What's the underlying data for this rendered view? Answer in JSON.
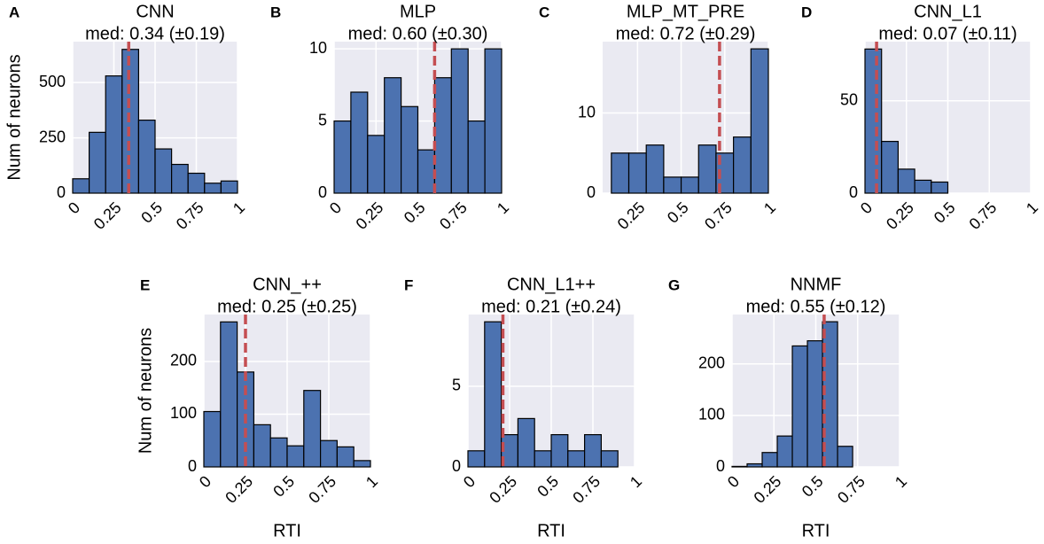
{
  "chart_data": [
    {
      "type": "histogram",
      "panel": "A",
      "title": "CNN",
      "subtitle": "med: 0.34 (±0.19)",
      "median": 0.34,
      "bins": [
        0,
        0.1,
        0.2,
        0.3,
        0.4,
        0.5,
        0.6,
        0.7,
        0.8,
        0.9,
        1.0
      ],
      "counts": [
        65,
        275,
        530,
        650,
        330,
        200,
        130,
        90,
        45,
        55
      ],
      "xlim": [
        0,
        1
      ],
      "ylim": [
        0,
        685
      ],
      "xticks": [
        0,
        0.25,
        0.5,
        0.75,
        1
      ],
      "yticks": [
        0,
        250,
        500
      ],
      "ylabel": "Num of neurons",
      "color": "#4c72b0",
      "median_color": "#c44e52",
      "grid": true
    },
    {
      "type": "histogram",
      "panel": "B",
      "title": "MLP",
      "subtitle": "med: 0.60 (±0.30)",
      "median": 0.6,
      "bins": [
        0,
        0.1,
        0.2,
        0.3,
        0.4,
        0.5,
        0.6,
        0.7,
        0.8,
        0.9,
        1.0
      ],
      "counts": [
        5,
        7,
        4,
        8,
        6,
        3,
        8,
        10,
        5,
        10
      ],
      "xlim": [
        0,
        1
      ],
      "ylim": [
        0,
        10.5
      ],
      "xticks": [
        0,
        0.25,
        0.5,
        0.75,
        1
      ],
      "yticks": [
        0,
        5,
        10
      ],
      "color": "#4c72b0",
      "median_color": "#c44e52",
      "grid": true
    },
    {
      "type": "histogram",
      "panel": "C",
      "title": "MLP_MT_PRE",
      "subtitle": "med: 0.72 (±0.29)",
      "median": 0.72,
      "bins": [
        0.1,
        0.2,
        0.3,
        0.4,
        0.5,
        0.6,
        0.7,
        0.8,
        0.9,
        1.0
      ],
      "counts": [
        5,
        5,
        6,
        2,
        2,
        6,
        5,
        7,
        18
      ],
      "xlim": [
        0.05,
        1
      ],
      "ylim": [
        0,
        18.9
      ],
      "xticks": [
        0.25,
        0.5,
        0.75,
        1
      ],
      "yticks": [
        0,
        10
      ],
      "color": "#4c72b0",
      "median_color": "#c44e52",
      "grid": true
    },
    {
      "type": "histogram",
      "panel": "D",
      "title": "CNN_L1",
      "subtitle": "med: 0.07 (±0.11)",
      "median": 0.07,
      "bins": [
        0,
        0.1,
        0.2,
        0.3,
        0.4,
        0.5
      ],
      "counts": [
        78,
        28,
        13,
        7,
        6
      ],
      "xlim": [
        0,
        1
      ],
      "ylim": [
        0,
        82
      ],
      "xticks": [
        0,
        0.25,
        0.5,
        0.75,
        1
      ],
      "yticks": [
        0,
        50
      ],
      "color": "#4c72b0",
      "median_color": "#c44e52",
      "grid": true
    },
    {
      "type": "histogram",
      "panel": "E",
      "title": "CNN_++",
      "subtitle": "med: 0.25 (±0.25)",
      "median": 0.25,
      "bins": [
        0,
        0.1,
        0.2,
        0.3,
        0.4,
        0.5,
        0.6,
        0.7,
        0.8,
        0.9,
        1.0
      ],
      "counts": [
        105,
        275,
        180,
        80,
        55,
        40,
        145,
        50,
        38,
        12
      ],
      "xlim": [
        0,
        1
      ],
      "ylim": [
        0,
        289
      ],
      "xticks": [
        0,
        0.25,
        0.5,
        0.75,
        1
      ],
      "yticks": [
        0,
        100,
        200
      ],
      "ylabel": "Num of neurons",
      "xlabel": "RTI",
      "color": "#4c72b0",
      "median_color": "#c44e52",
      "grid": true
    },
    {
      "type": "histogram",
      "panel": "F",
      "title": "CNN_L1++",
      "subtitle": "med: 0.21 (±0.24)",
      "median": 0.21,
      "bins": [
        0,
        0.1,
        0.2,
        0.3,
        0.4,
        0.5,
        0.6,
        0.7,
        0.8,
        0.9
      ],
      "counts": [
        1,
        9,
        2,
        3,
        1,
        2,
        1,
        2,
        1
      ],
      "xlim": [
        0,
        1
      ],
      "ylim": [
        0,
        9.45
      ],
      "xticks": [
        0,
        0.25,
        0.5,
        0.75,
        1
      ],
      "yticks": [
        0,
        5
      ],
      "xlabel": "RTI",
      "color": "#4c72b0",
      "median_color": "#c44e52",
      "grid": true
    },
    {
      "type": "histogram",
      "panel": "G",
      "title": "NNMF",
      "subtitle": "med: 0.55 (±0.12)",
      "median": 0.55,
      "bins": [
        0,
        0.09,
        0.18,
        0.27,
        0.36,
        0.45,
        0.54,
        0.63,
        0.72
      ],
      "counts": [
        1,
        6,
        28,
        60,
        235,
        245,
        282,
        40
      ],
      "xlim": [
        0,
        1
      ],
      "ylim": [
        0,
        296
      ],
      "xticks": [
        0,
        0.25,
        0.5,
        0.75,
        1
      ],
      "yticks": [
        0,
        100,
        200
      ],
      "xlabel": "RTI",
      "color": "#4c72b0",
      "median_color": "#c44e52",
      "grid": true
    }
  ]
}
